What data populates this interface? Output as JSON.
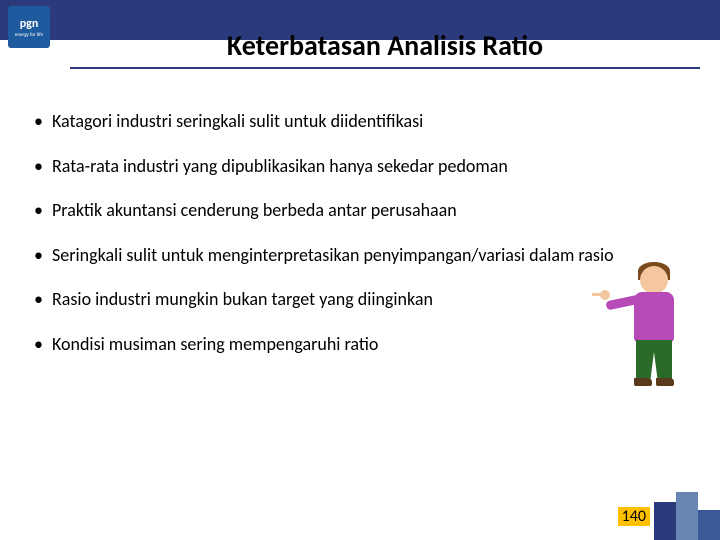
{
  "logo": {
    "text": "pgn",
    "sub": "energy for life"
  },
  "title": "Keterbatasan Analisis Ratio",
  "bullets": [
    "Katagori industri seringkali sulit untuk diidentifikasi",
    "Rata-rata industri yang dipublikasikan hanya sekedar pedoman",
    "Praktik akuntansi cenderung berbeda antar perusahaan",
    "Seringkali sulit untuk menginterpretasikan penyimpangan/variasi dalam rasio",
    "Rasio industri mungkin bukan target yang diinginkan",
    "Kondisi musiman sering mempengaruhi ratio"
  ],
  "page_number": "140",
  "colors": {
    "header_bar": "#2a3a7a",
    "logo_bg": "#1e5a9e",
    "page_num_bg": "#ffc000",
    "footer_1": "#2a3a7a",
    "footer_2": "#6a84b4",
    "footer_3": "#3b5998"
  }
}
